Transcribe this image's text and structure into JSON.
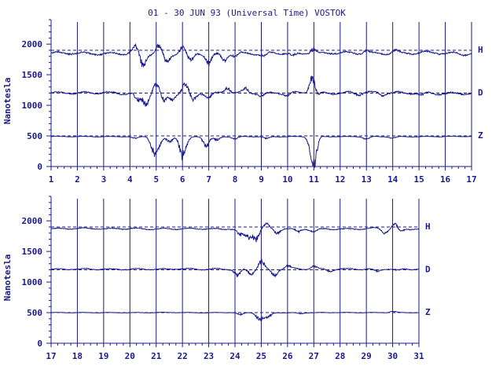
{
  "chart_data": {
    "type": "line",
    "title": "01 - 30 JUN 93 (Universal Time) VOSTOK",
    "ylabel": "Nanotesla",
    "ylim": [
      0,
      2400
    ],
    "y_ticks": [
      "0",
      "500",
      "1000",
      "1500",
      "2000"
    ],
    "colors": {
      "ink": "#1a1a8c",
      "axis": "#1a1a8c",
      "background": "#ffffff"
    },
    "panels": [
      {
        "x_ticks": [
          "1",
          "2",
          "3",
          "4",
          "5",
          "6",
          "7",
          "8",
          "9",
          "10",
          "11",
          "12",
          "13",
          "14",
          "15",
          "16",
          "17"
        ],
        "xlim": [
          1,
          17
        ],
        "series": [
          {
            "name": "H",
            "baseline": 1900,
            "base": 1850,
            "amp": 55,
            "events": [
              [
                4.2,
                120
              ],
              [
                4.5,
                -220
              ],
              [
                5.1,
                150
              ],
              [
                5.4,
                -170
              ],
              [
                6.0,
                120
              ],
              [
                6.3,
                -150
              ],
              [
                7.0,
                -180
              ],
              [
                7.6,
                -120
              ],
              [
                8.0,
                -60
              ],
              [
                9.1,
                -60
              ],
              [
                10.2,
                -50
              ],
              [
                11.0,
                130
              ],
              [
                11.05,
                -60
              ],
              [
                13.0,
                60
              ],
              [
                14.1,
                50
              ]
            ]
          },
          {
            "name": "D",
            "baseline": 1200,
            "base": 1200,
            "amp": 50,
            "events": [
              [
                4.3,
                -150
              ],
              [
                4.6,
                -200
              ],
              [
                5.0,
                180
              ],
              [
                5.3,
                -150
              ],
              [
                5.6,
                -120
              ],
              [
                6.1,
                170
              ],
              [
                6.4,
                -130
              ],
              [
                7.0,
                -90
              ],
              [
                7.7,
                120
              ],
              [
                8.4,
                90
              ],
              [
                9.0,
                -60
              ],
              [
                10.0,
                -50
              ],
              [
                10.95,
                300
              ],
              [
                11.1,
                -100
              ],
              [
                12.7,
                -40
              ],
              [
                13.6,
                -50
              ],
              [
                15.1,
                -40
              ]
            ]
          },
          {
            "name": "Z",
            "baseline": 500,
            "base": 490,
            "amp": 12,
            "events": [
              [
                4.2,
                -40
              ],
              [
                4.9,
                -280
              ],
              [
                5.1,
                -140
              ],
              [
                5.5,
                -100
              ],
              [
                6.0,
                -350
              ],
              [
                6.2,
                -60
              ],
              [
                6.9,
                -180
              ],
              [
                7.3,
                -70
              ],
              [
                8.0,
                -40
              ],
              [
                9.2,
                -40
              ],
              [
                10.9,
                -150
              ],
              [
                11.0,
                -440
              ],
              [
                13.0,
                -50
              ],
              [
                14.0,
                -30
              ]
            ]
          }
        ]
      },
      {
        "x_ticks": [
          "17",
          "18",
          "19",
          "20",
          "21",
          "22",
          "23",
          "24",
          "25",
          "26",
          "27",
          "28",
          "29",
          "30",
          "31"
        ],
        "xlim": [
          17,
          31
        ],
        "series": [
          {
            "name": "H",
            "baseline": 1900,
            "base": 1870,
            "amp": 30,
            "events": [
              [
                24.2,
                -120
              ],
              [
                24.5,
                -160
              ],
              [
                24.8,
                -200
              ],
              [
                25.2,
                80
              ],
              [
                25.6,
                -90
              ],
              [
                26.4,
                -60
              ],
              [
                27.0,
                -50
              ],
              [
                29.7,
                -80
              ],
              [
                30.1,
                90
              ],
              [
                30.3,
                -60
              ]
            ]
          },
          {
            "name": "D",
            "baseline": 1200,
            "base": 1210,
            "amp": 28,
            "events": [
              [
                24.1,
                -120
              ],
              [
                24.6,
                -100
              ],
              [
                25.0,
                150
              ],
              [
                25.5,
                -120
              ],
              [
                26.0,
                60
              ],
              [
                27.0,
                60
              ],
              [
                27.6,
                -40
              ],
              [
                29.4,
                -40
              ],
              [
                30.2,
                -30
              ]
            ]
          },
          {
            "name": "Z",
            "baseline": 500,
            "base": 500,
            "amp": 10,
            "events": [
              [
                24.2,
                -40
              ],
              [
                24.9,
                -100
              ],
              [
                25.1,
                -80
              ],
              [
                25.3,
                -60
              ],
              [
                26.5,
                -20
              ],
              [
                30.0,
                25
              ]
            ]
          }
        ]
      }
    ]
  }
}
